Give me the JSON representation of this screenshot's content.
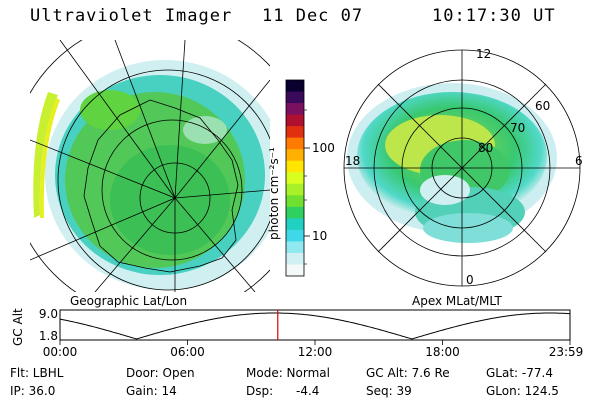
{
  "header": {
    "title": "Ultraviolet Imager",
    "date": "11 Dec 07",
    "time": "10:17:30 UT"
  },
  "left_panel": {
    "caption": "Geographic Lat/Lon"
  },
  "right_panel": {
    "caption": "Apex MLat/MLT",
    "hour_labels": {
      "top": "12",
      "left": "18",
      "right": "6",
      "bottom": "0"
    },
    "lat_labels": [
      "60",
      "70",
      "80"
    ]
  },
  "colorbar": {
    "label": "photon cm⁻²s⁻¹",
    "tick_100": "100",
    "tick_10": "10",
    "colors": [
      "#0a0030",
      "#3a0a5a",
      "#7a1060",
      "#b01030",
      "#e03010",
      "#ff7a00",
      "#ffb000",
      "#ffe500",
      "#d8ff20",
      "#a8f028",
      "#70e030",
      "#30d060",
      "#20d0c0",
      "#40d8e8",
      "#90e8f0",
      "#d0f0f4",
      "#f4f8f8"
    ]
  },
  "timeline": {
    "ylabel": "GC Alt",
    "ytick_top": "9.0",
    "ytick_bottom": "1.8",
    "xticks": [
      "00:00",
      "06:00",
      "12:00",
      "18:00",
      "23:59"
    ],
    "current_time_fraction": 0.427
  },
  "footer": {
    "flt": "Flt: LBHL",
    "ip": "IP: 36.0",
    "door": "Door: Open",
    "gain": "Gain: 14",
    "mode": "Mode: Normal",
    "dsp_label": "Dsp:",
    "dsp_value": "-4.4",
    "gc_alt": "GC Alt: 7.6 Re",
    "seq": "Seq: 39",
    "glat": "GLat: -77.4",
    "glon": "GLon: 124.5"
  }
}
